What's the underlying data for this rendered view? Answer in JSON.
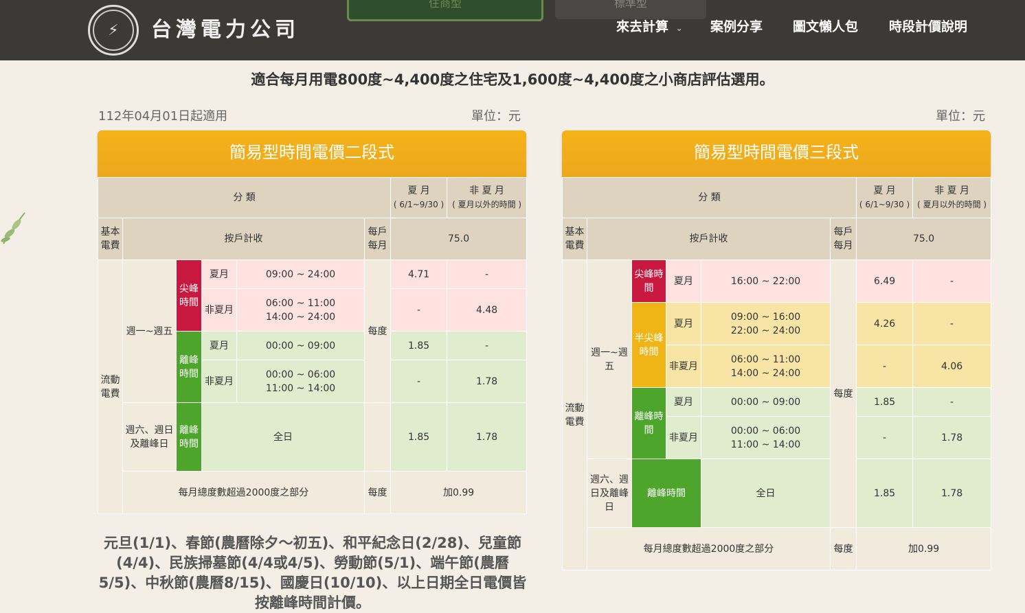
{
  "header": {
    "brand": "台灣電力公司",
    "nav": [
      {
        "label": "來去計算"
      },
      {
        "label": "案例分享"
      },
      {
        "label": "圖文懶人包"
      },
      {
        "label": "時段計價說明"
      }
    ],
    "tab_partial": "住商型",
    "tab_partial2": "標準型"
  },
  "intro": "適合每月用電800度~4,400度之住宅及1,600度~4,400度之小商店評估選用。",
  "effective_date": "112年04月01日起適用",
  "unit_label": "單位：元",
  "common": {
    "category": "分 類",
    "summer": "夏 月",
    "summer_range": "( 6/1~9/30 )",
    "non_summer": "非 夏 月",
    "non_summer_range": "( 夏月以外的時間 )",
    "basic_fee": "基本電費",
    "per_household": "按戶計收",
    "per_month": "每戶每月",
    "basic_value": "75.0",
    "flow_fee": "流動電費",
    "per_kwh": "每度",
    "weekday": "週一~週五",
    "weekend_2": "週六、週日及離峰日",
    "weekend_3": "週六、週日及離峰日",
    "summer_short": "夏月",
    "non_summer_short": "非夏月",
    "all_day": "全日",
    "over_2000": "每月總度數超過2000度之部分",
    "over_value": "加0.99",
    "peak": "尖峰時間",
    "off_peak": "離峰時間",
    "semi_peak": "半尖峰時間"
  },
  "two_tier": {
    "title": "簡易型時間電價二段式",
    "rows": {
      "peak_summer_time": "09:00 ~ 24:00",
      "peak_summer_value": "4.71",
      "peak_summer_ns": "-",
      "peak_ns_time1": "06:00 ~ 11:00",
      "peak_ns_time2": "14:00 ~ 24:00",
      "peak_ns_s": "-",
      "peak_ns_value": "4.48",
      "off_summer_time": "00:00 ~ 09:00",
      "off_summer_value": "1.85",
      "off_summer_ns": "-",
      "off_ns_time1": "00:00 ~ 06:00",
      "off_ns_time2": "11:00 ~ 14:00",
      "off_ns_s": "-",
      "off_ns_value": "1.78",
      "weekend_s": "1.85",
      "weekend_ns": "1.78"
    }
  },
  "three_tier": {
    "title": "簡易型時間電價三段式",
    "rows": {
      "peak_time": "16:00 ~ 22:00",
      "peak_s": "6.49",
      "peak_ns": "-",
      "semi_s_time1": "09:00 ~ 16:00",
      "semi_s_time2": "22:00 ~ 24:00",
      "semi_s_s": "4.26",
      "semi_s_ns": "-",
      "semi_ns_time1": "06:00 ~ 11:00",
      "semi_ns_time2": "14:00 ~ 24:00",
      "semi_ns_s": "-",
      "semi_ns_ns": "4.06",
      "off_s_time": "00:00 ~ 09:00",
      "off_s_s": "1.85",
      "off_s_ns": "-",
      "off_ns_time1": "00:00 ~ 06:00",
      "off_ns_time2": "11:00 ~ 14:00",
      "off_ns_s": "-",
      "off_ns_ns": "1.78",
      "weekend_s": "1.85",
      "weekend_ns": "1.78"
    }
  },
  "holiday_note": "元旦(1/1)、春節(農曆除夕～初五)、和平紀念日(2/28)、兒童節(4/4)、民族掃墓節(4/4或4/5)、勞動節(5/1)、端午節(農曆5/5)、中秋節(農曆8/15)、國慶日(10/10)、以上日期全日電價皆按離峰時間計價。",
  "colors": {
    "header_bg": "#3c3a37",
    "title_bg": "#f5b21a",
    "peak_red": "#c9183f",
    "offpeak_green": "#4ea52c",
    "semipeak_yellow": "#efb416"
  }
}
